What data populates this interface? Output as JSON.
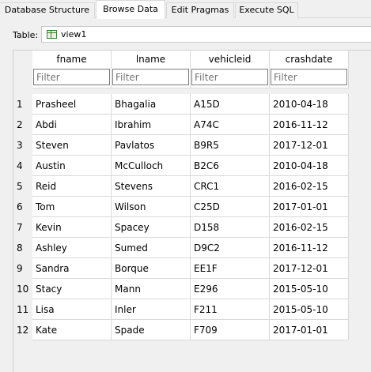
{
  "tabs": [
    {
      "label": "Database Structure",
      "active": false
    },
    {
      "label": "Browse Data",
      "active": true
    },
    {
      "label": "Edit Pragmas",
      "active": false
    },
    {
      "label": "Execute SQL",
      "active": false
    }
  ],
  "table_selector": {
    "label": "Table:",
    "value": "view1",
    "icon": "table-icon"
  },
  "grid": {
    "columns": [
      "fname",
      "lname",
      "vehicleid",
      "crashdate"
    ],
    "filter_placeholder": "Filter",
    "rows": [
      [
        "1",
        "Prasheel",
        "Bhagalia",
        "A15D",
        "2010-04-18"
      ],
      [
        "2",
        "Abdi",
        "Ibrahim",
        "A74C",
        "2016-11-12"
      ],
      [
        "3",
        "Steven",
        "Pavlatos",
        "B9R5",
        "2017-12-01"
      ],
      [
        "4",
        "Austin",
        "McCulloch",
        "B2C6",
        "2010-04-18"
      ],
      [
        "5",
        "Reid",
        "Stevens",
        "CRC1",
        "2016-02-15"
      ],
      [
        "6",
        "Tom",
        "Wilson",
        "C25D",
        "2017-01-01"
      ],
      [
        "7",
        "Kevin",
        "Spacey",
        "D158",
        "2016-02-15"
      ],
      [
        "8",
        "Ashley",
        "Sumed",
        "D9C2",
        "2016-11-12"
      ],
      [
        "9",
        "Sandra",
        "Borque",
        "EE1F",
        "2017-12-01"
      ],
      [
        "10",
        "Stacy",
        "Mann",
        "E296",
        "2015-05-10"
      ],
      [
        "11",
        "Lisa",
        "Inler",
        "F211",
        "2015-05-10"
      ],
      [
        "12",
        "Kate",
        "Spade",
        "F709",
        "2017-01-01"
      ]
    ]
  }
}
